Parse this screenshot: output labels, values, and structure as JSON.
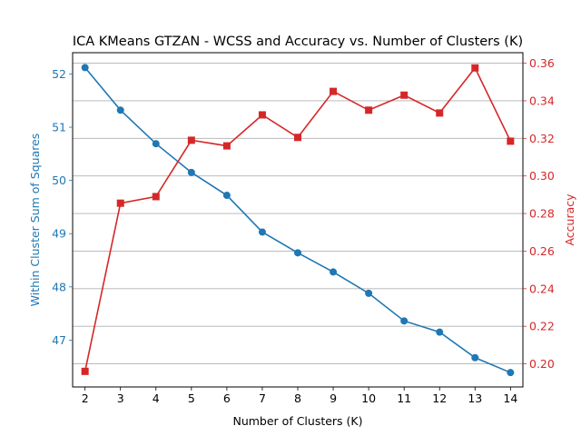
{
  "chart_data": {
    "type": "line",
    "title": "ICA KMeans GTZAN - WCSS and Accuracy vs. Number of Clusters (K)",
    "xlabel": "Number of Clusters (K)",
    "x": [
      2,
      3,
      4,
      5,
      6,
      7,
      8,
      9,
      10,
      11,
      12,
      13,
      14
    ],
    "xlim": [
      1.65,
      14.35
    ],
    "grid": "horizontal, right axis",
    "series": [
      {
        "axis": "left",
        "label": "Within Cluster Sum of Squares",
        "color": "#1f77b4",
        "marker": "circle",
        "values": [
          52.12,
          51.32,
          50.69,
          50.15,
          49.72,
          49.03,
          48.64,
          48.28,
          47.88,
          47.36,
          47.15,
          46.67,
          46.39
        ],
        "ylim": [
          46.12,
          52.4
        ],
        "ticks": [
          47,
          48,
          49,
          50,
          51,
          52
        ]
      },
      {
        "axis": "right",
        "label": "Accuracy",
        "color": "#d62728",
        "marker": "square",
        "values": [
          0.196,
          0.2855,
          0.289,
          0.319,
          0.316,
          0.3325,
          0.3205,
          0.345,
          0.335,
          0.343,
          0.3335,
          0.3575,
          0.3185
        ],
        "ylim": [
          0.1877,
          0.3656
        ],
        "ticks": [
          0.2,
          0.22,
          0.24,
          0.26,
          0.28,
          0.3,
          0.32,
          0.34,
          0.36
        ],
        "tick_labels": [
          "0.20",
          "0.22",
          "0.24",
          "0.26",
          "0.28",
          "0.30",
          "0.32",
          "0.34",
          "0.36"
        ]
      }
    ]
  }
}
